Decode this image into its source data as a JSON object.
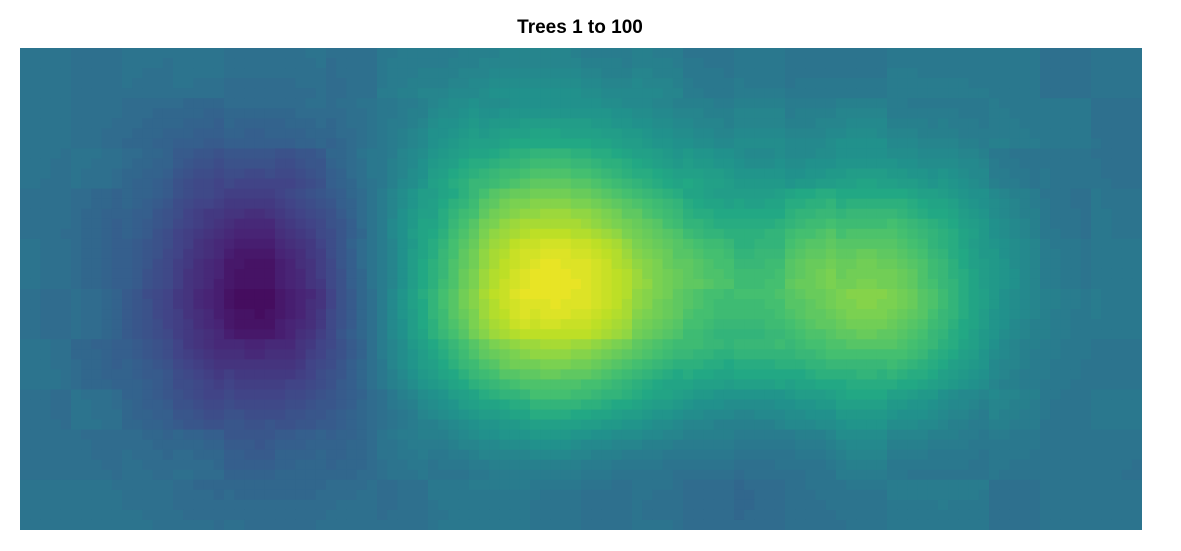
{
  "chart_data": {
    "type": "heatmap",
    "title": "Trees 1 to 100",
    "xlabel": "",
    "ylabel": "",
    "colormap": "viridis",
    "grid": false,
    "legend": "none",
    "value_range": [
      0,
      1
    ],
    "background_value": 0.38,
    "features": [
      {
        "name": "low-blob-left",
        "cx": 0.215,
        "cy": 0.5,
        "sx": 0.075,
        "sy": 0.2,
        "amp": -0.34
      },
      {
        "name": "high-blob-center",
        "cx": 0.47,
        "cy": 0.49,
        "sx": 0.09,
        "sy": 0.22,
        "amp": 0.58
      },
      {
        "name": "high-blob-right",
        "cx": 0.76,
        "cy": 0.5,
        "sx": 0.075,
        "sy": 0.18,
        "amp": 0.42
      },
      {
        "name": "low-blob-bottom",
        "cx": 0.51,
        "cy": 0.87,
        "sx": 0.13,
        "sy": 0.11,
        "amp": -0.09
      },
      {
        "name": "bridge",
        "cx": 0.615,
        "cy": 0.52,
        "sx": 0.06,
        "sy": 0.16,
        "amp": 0.12
      }
    ],
    "colors": {
      "viridis_stops": [
        "#440154",
        "#482475",
        "#414487",
        "#355f8d",
        "#2a788e",
        "#21918c",
        "#22a884",
        "#44bf70",
        "#7ad151",
        "#bddf26",
        "#fde725"
      ]
    }
  }
}
